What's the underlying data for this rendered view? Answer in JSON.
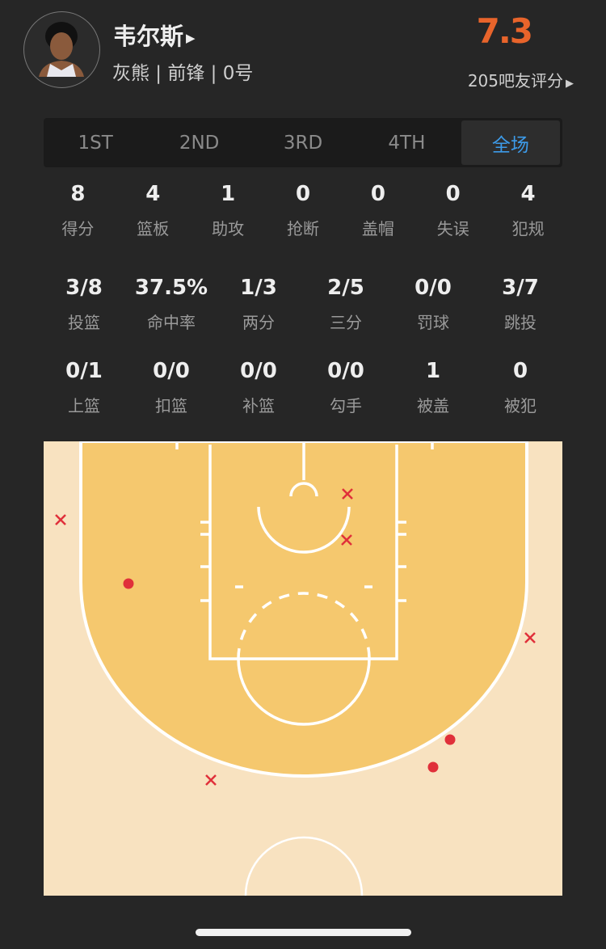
{
  "player": {
    "name": "韦尔斯",
    "info": "灰熊 | 前锋 | 0号",
    "rating": "7.3",
    "votes_label": "205吧友评分",
    "avatar_icon": "player-photo"
  },
  "tabs": [
    {
      "label": "1ST"
    },
    {
      "label": "2ND"
    },
    {
      "label": "3RD"
    },
    {
      "label": "4TH"
    },
    {
      "label": "全场",
      "active": true
    }
  ],
  "stats_basic": [
    {
      "value": "8",
      "label": "得分"
    },
    {
      "value": "4",
      "label": "篮板"
    },
    {
      "value": "1",
      "label": "助攻"
    },
    {
      "value": "0",
      "label": "抢断"
    },
    {
      "value": "0",
      "label": "盖帽"
    },
    {
      "value": "0",
      "label": "失误"
    },
    {
      "value": "4",
      "label": "犯规"
    }
  ],
  "stats_shooting": [
    {
      "value": "3/8",
      "label": "投篮"
    },
    {
      "value": "37.5%",
      "label": "命中率"
    },
    {
      "value": "1/3",
      "label": "两分"
    },
    {
      "value": "2/5",
      "label": "三分"
    },
    {
      "value": "0/0",
      "label": "罚球"
    },
    {
      "value": "3/7",
      "label": "跳投"
    }
  ],
  "stats_shot_types": [
    {
      "value": "0/1",
      "label": "上篮"
    },
    {
      "value": "0/0",
      "label": "扣篮"
    },
    {
      "value": "0/0",
      "label": "补篮"
    },
    {
      "value": "0/0",
      "label": "勾手"
    },
    {
      "value": "1",
      "label": "被盖"
    },
    {
      "value": "0",
      "label": "被犯"
    }
  ],
  "shot_chart": {
    "shots": [
      "missed",
      "missed",
      "missed",
      "missed",
      "missed",
      "made",
      "made",
      "made"
    ],
    "colors": {
      "paint_area": "#f5c86e",
      "outside": "#f8e2c0",
      "lines": "#ffffff",
      "marker": "#e0303a"
    }
  }
}
